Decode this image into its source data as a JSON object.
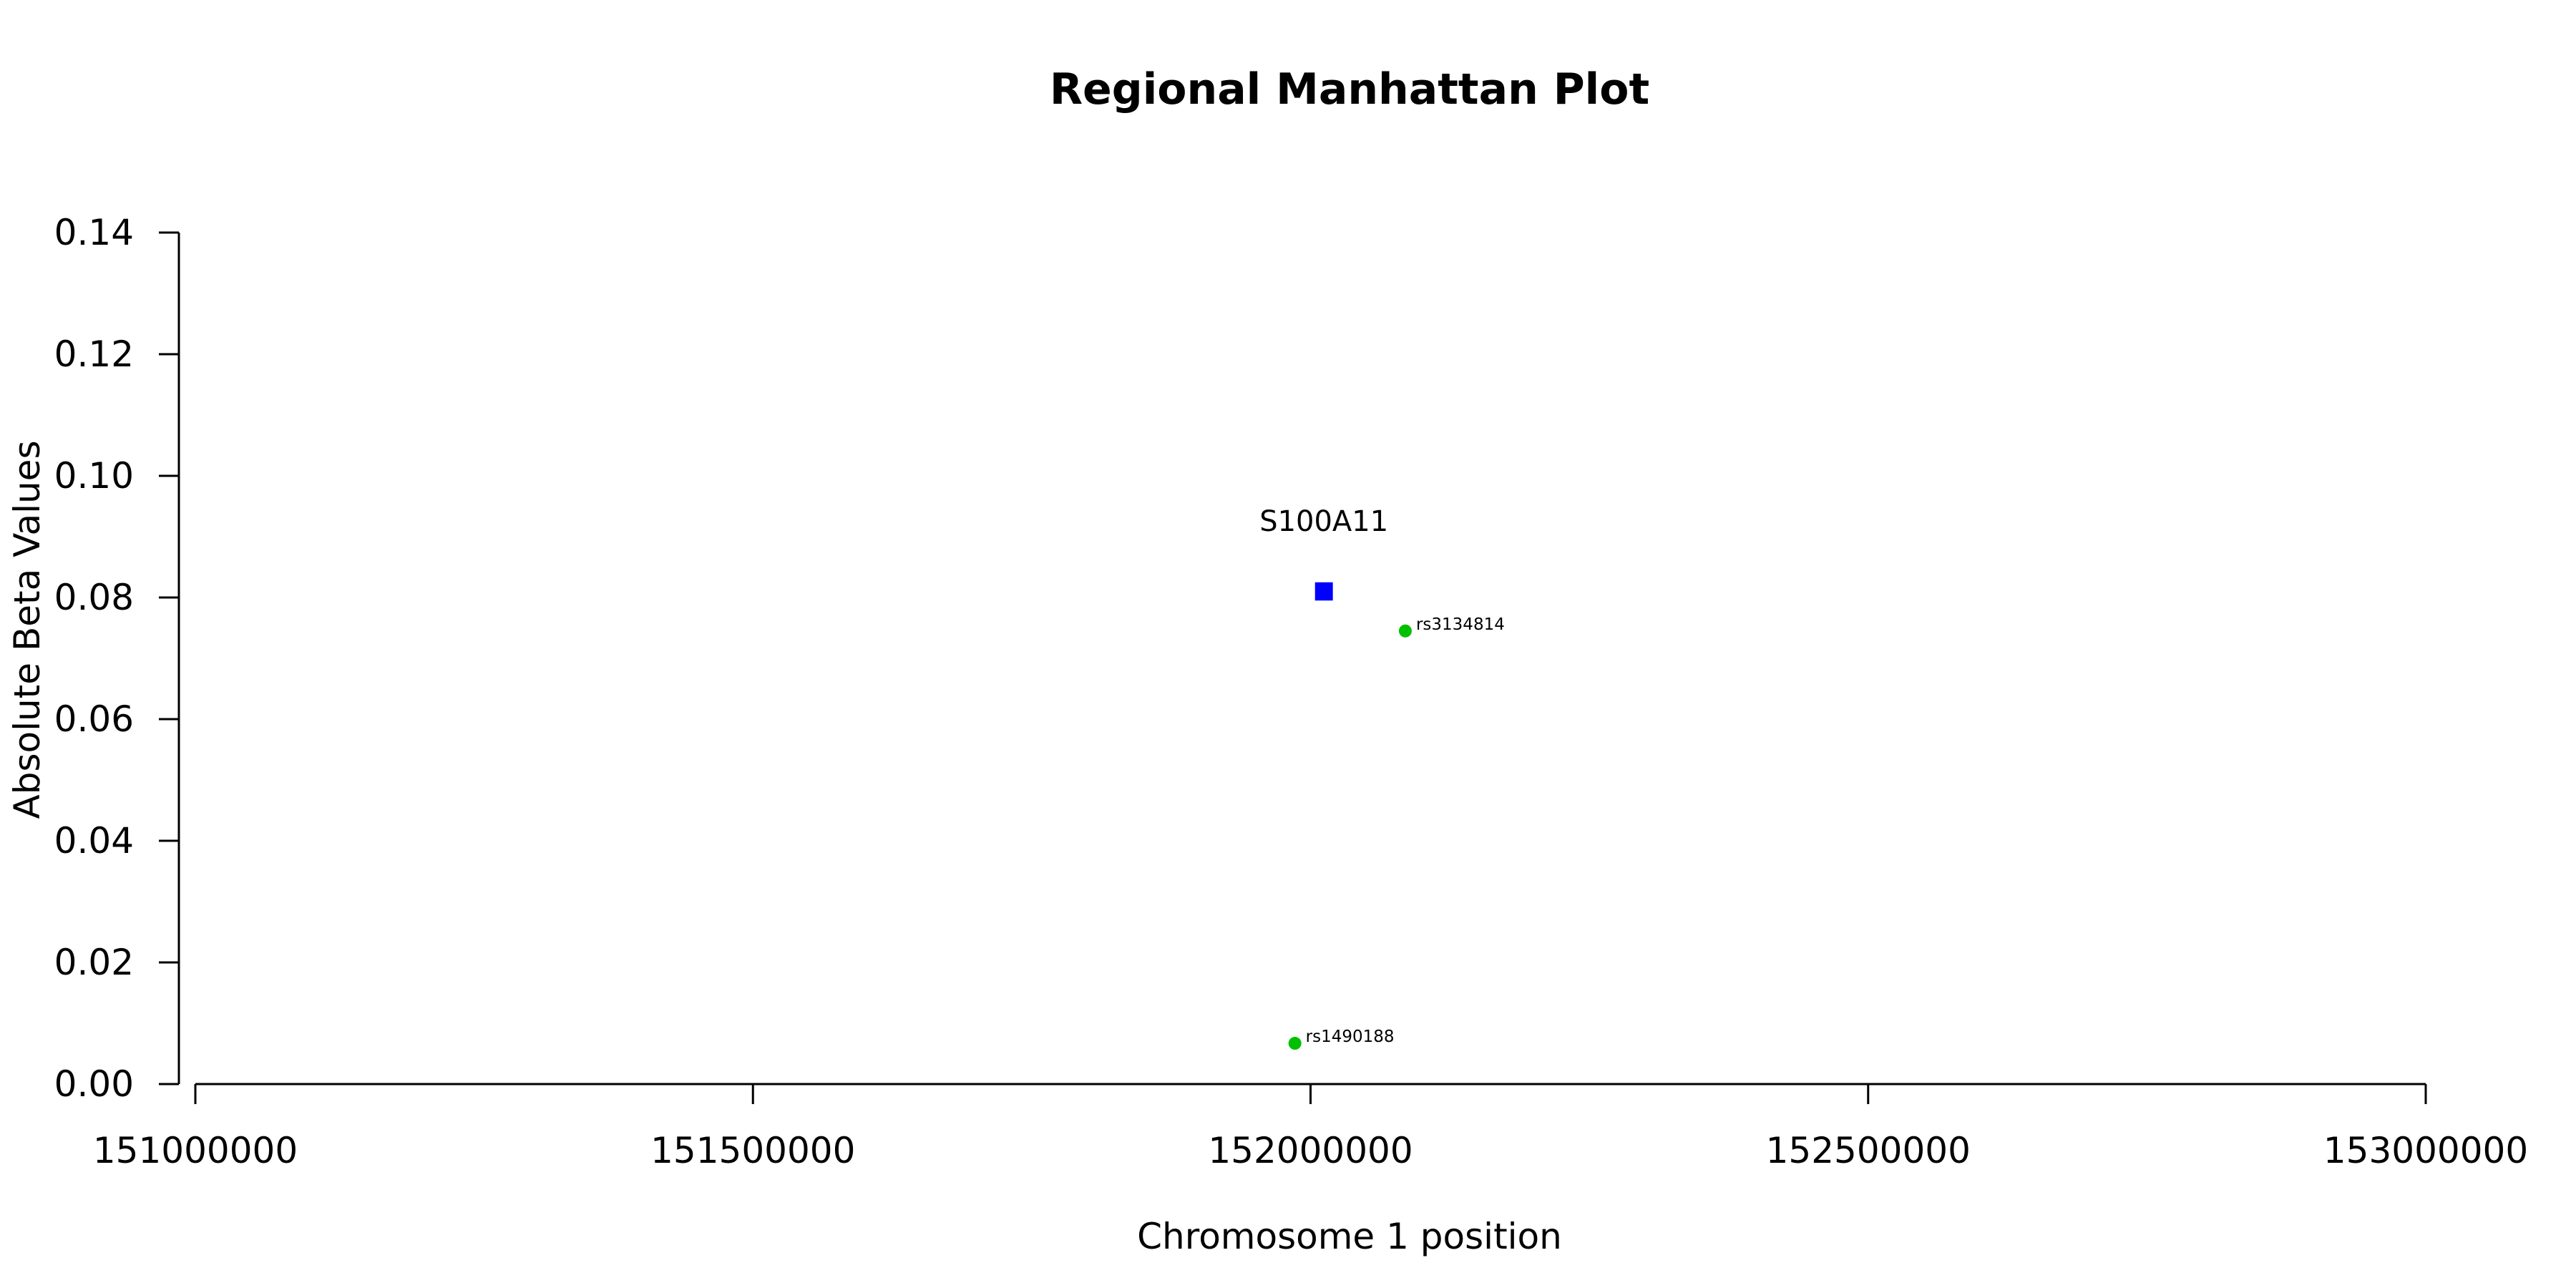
{
  "chart_data": {
    "type": "scatter",
    "title": "Regional Manhattan Plot",
    "xlabel": "Chromosome 1 position",
    "ylabel": "Absolute Beta Values",
    "xlim": [
      151000000,
      153000000
    ],
    "ylim": [
      0,
      0.14
    ],
    "x_ticks": [
      151000000,
      151500000,
      152000000,
      152500000,
      153000000
    ],
    "x_tick_labels": [
      "151000000",
      "151500000",
      "152000000",
      "152500000",
      "153000000"
    ],
    "y_ticks": [
      0,
      0.02,
      0.04,
      0.06,
      0.08,
      0.1,
      0.12,
      0.14
    ],
    "y_tick_labels": [
      "0.00",
      "0.02",
      "0.04",
      "0.06",
      "0.08",
      "0.10",
      "0.12",
      "0.14"
    ],
    "grid": false,
    "gene": {
      "name": "S100A11",
      "start": 152004000,
      "end": 152020000,
      "beta_low": 0.0795,
      "beta_high": 0.0825,
      "color": "#0000ff"
    },
    "snps": [
      {
        "id": "rs3134814",
        "x": 152085000,
        "y": 0.0745,
        "color": "#00c000"
      },
      {
        "id": "rs1490188",
        "x": 151986000,
        "y": 0.0067,
        "color": "#00c000"
      }
    ]
  }
}
